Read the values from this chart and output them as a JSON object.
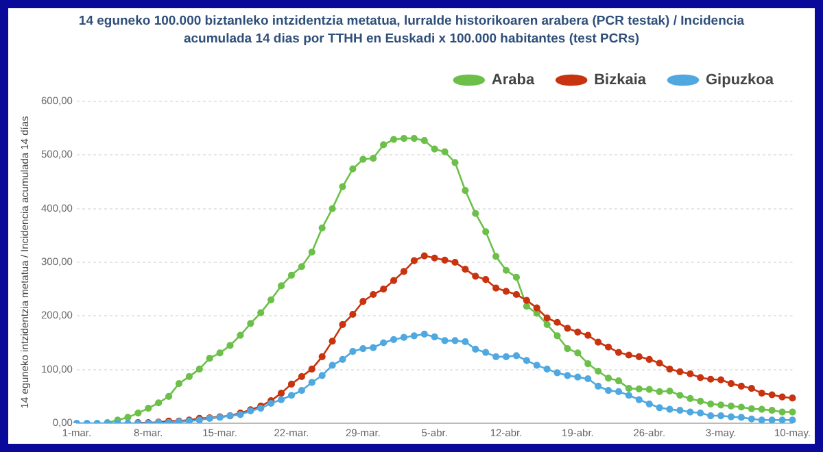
{
  "chart_data": {
    "type": "line",
    "title": "14 eguneko 100.000 biztanleko intzidentzia metatua, lurralde historikoaren arabera (PCR testak) / Incidencia acumulada 14 dias por TTHH en Euskadi x 100.000 habitantes (test PCRs)",
    "ylabel": "14 eguneko intzidentzia metatua / Incidencia acumulada 14 días",
    "categories": [
      "1-mar.",
      null,
      null,
      null,
      null,
      null,
      null,
      "8-mar.",
      null,
      null,
      null,
      null,
      null,
      null,
      "15-mar.",
      null,
      null,
      null,
      null,
      null,
      null,
      "22-mar.",
      null,
      null,
      null,
      null,
      null,
      null,
      "29-mar.",
      null,
      null,
      null,
      null,
      null,
      null,
      "5-abr.",
      null,
      null,
      null,
      null,
      null,
      null,
      "12-abr.",
      null,
      null,
      null,
      null,
      null,
      null,
      "19-abr.",
      null,
      null,
      null,
      null,
      null,
      null,
      "26-abr.",
      null,
      null,
      null,
      null,
      null,
      null,
      "3-may.",
      null,
      null,
      null,
      null,
      null,
      null,
      "10-may."
    ],
    "series": [
      {
        "name": "Araba",
        "color": "#6cc04a",
        "values": [
          null,
          null,
          null,
          1,
          6,
          11,
          19,
          28,
          38,
          50,
          74,
          87,
          101,
          121,
          131,
          145,
          164,
          186,
          206,
          230,
          256,
          276,
          292,
          319,
          364,
          400,
          441,
          474,
          492,
          494,
          519,
          529,
          531,
          531,
          527,
          511,
          506,
          486,
          434,
          391,
          357,
          311,
          285,
          272,
          218,
          205,
          184,
          163,
          139,
          131,
          111,
          97,
          84,
          79,
          65,
          64,
          63,
          59,
          60,
          52,
          46,
          41,
          36,
          34,
          32,
          30,
          27,
          26,
          24,
          21,
          21
        ]
      },
      {
        "name": "Bizkaia",
        "color": "#c8340f",
        "values": [
          null,
          null,
          null,
          null,
          null,
          null,
          1,
          1,
          2,
          4,
          4,
          6,
          9,
          10,
          12,
          14,
          19,
          25,
          32,
          42,
          56,
          73,
          87,
          101,
          124,
          153,
          184,
          203,
          227,
          240,
          250,
          266,
          283,
          303,
          312,
          308,
          304,
          300,
          287,
          274,
          268,
          252,
          246,
          240,
          229,
          215,
          196,
          188,
          177,
          170,
          164,
          151,
          142,
          132,
          127,
          124,
          119,
          112,
          101,
          96,
          92,
          85,
          82,
          81,
          74,
          69,
          65,
          56,
          53,
          49,
          47
        ]
      },
      {
        "name": "Gipuzkoa",
        "color": "#4fa8e0",
        "values": [
          0,
          0,
          0,
          0,
          0,
          0,
          0,
          0,
          1,
          1,
          3,
          4,
          6,
          9,
          11,
          14,
          16,
          23,
          28,
          37,
          44,
          52,
          61,
          76,
          89,
          108,
          119,
          134,
          139,
          141,
          150,
          156,
          160,
          163,
          166,
          161,
          154,
          154,
          152,
          138,
          132,
          124,
          124,
          126,
          117,
          108,
          101,
          94,
          89,
          86,
          83,
          69,
          61,
          59,
          52,
          44,
          36,
          29,
          26,
          24,
          21,
          19,
          14,
          14,
          12,
          11,
          8,
          6,
          6,
          6,
          6
        ]
      }
    ],
    "ylim": [
      0,
      600
    ],
    "yticks": [
      {
        "value": 0,
        "label": "0,00"
      },
      {
        "value": 100,
        "label": "100,00"
      },
      {
        "value": 200,
        "label": "200,00"
      },
      {
        "value": 300,
        "label": "300,00"
      },
      {
        "value": 400,
        "label": "400,00"
      },
      {
        "value": 500,
        "label": "500,00"
      },
      {
        "value": 600,
        "label": "600,00"
      }
    ],
    "grid": "y",
    "legend": "top right",
    "marker": "circle",
    "line_style": "solid"
  }
}
